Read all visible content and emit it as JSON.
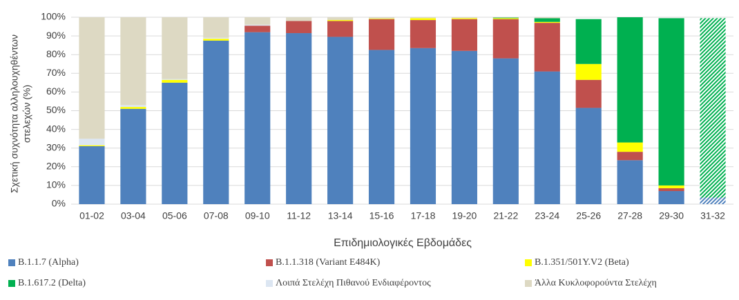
{
  "chart_data": {
    "type": "stacked_bar",
    "y_label": [
      "Σχετική συχνότητα αλληλουχηθέντων",
      "στελεχών (%)"
    ],
    "x_label": "Επιδημιολογικές Εβδομάδες",
    "categories": [
      "01-02",
      "03-04",
      "05-06",
      "07-08",
      "09-10",
      "11-12",
      "13-14",
      "15-16",
      "17-18",
      "19-20",
      "21-22",
      "23-24",
      "25-26",
      "27-28",
      "29-30",
      "31-32"
    ],
    "hatched": [
      false,
      false,
      false,
      false,
      false,
      false,
      false,
      false,
      false,
      false,
      false,
      false,
      false,
      false,
      false,
      true
    ],
    "series": [
      {
        "name": "B.1.1.7 (Alpha)",
        "color": "#4f81bd",
        "values": [
          31,
          51,
          65,
          87.5,
          92,
          91.5,
          89.5,
          82.5,
          83.5,
          82,
          78,
          71,
          51.5,
          23.5,
          7,
          3.5
        ]
      },
      {
        "name": "B.1.1.318 (Variant E484K)",
        "color": "#c0504d",
        "values": [
          0,
          0,
          0,
          0,
          3.5,
          6.5,
          8.5,
          16.5,
          15,
          17,
          21,
          26,
          15,
          4.5,
          1.5,
          0
        ]
      },
      {
        "name": "B.1.351/501Y.V2 (Beta)",
        "color": "#ffff00",
        "values": [
          0.5,
          1,
          1.5,
          1,
          0,
          0,
          0.5,
          0.3,
          1,
          0.5,
          0.5,
          0.5,
          8.5,
          5,
          1.5,
          0
        ]
      },
      {
        "name": "B.1.617.2 (Delta)",
        "color": "#00b050",
        "values": [
          0,
          0,
          0,
          0,
          0,
          0,
          0,
          0,
          0,
          0,
          0.3,
          2,
          24,
          67,
          89.5,
          96
        ]
      },
      {
        "name": "Λοιπά Στελέχη Πιθανού Ενδιαφέροντος",
        "color": "#dce6f2",
        "values": [
          3.5,
          1,
          0.5,
          0.5,
          0.5,
          0,
          0,
          0,
          0,
          0,
          0,
          0,
          0,
          0,
          0,
          0
        ]
      },
      {
        "name": "Άλλα Κυκλοφορούντα Στελέχη",
        "color": "#ddd9c3",
        "values": [
          65,
          47,
          33,
          11,
          4,
          2,
          1.5,
          0.7,
          0.5,
          0.5,
          0.2,
          0.5,
          0,
          0,
          0,
          0
        ]
      }
    ],
    "ylim": [
      0,
      100
    ],
    "yticks": [
      {
        "value": 0,
        "label": "0%"
      },
      {
        "value": 10,
        "label": "10%"
      },
      {
        "value": 20,
        "label": "20%"
      },
      {
        "value": 30,
        "label": "30%"
      },
      {
        "value": 40,
        "label": "40%"
      },
      {
        "value": 50,
        "label": "50%"
      },
      {
        "value": 60,
        "label": "60%"
      },
      {
        "value": 70,
        "label": "70%"
      },
      {
        "value": 80,
        "label": "80%"
      },
      {
        "value": 90,
        "label": "90%"
      },
      {
        "value": 100,
        "label": "100%"
      }
    ],
    "grid": true,
    "legend": "bottom"
  }
}
